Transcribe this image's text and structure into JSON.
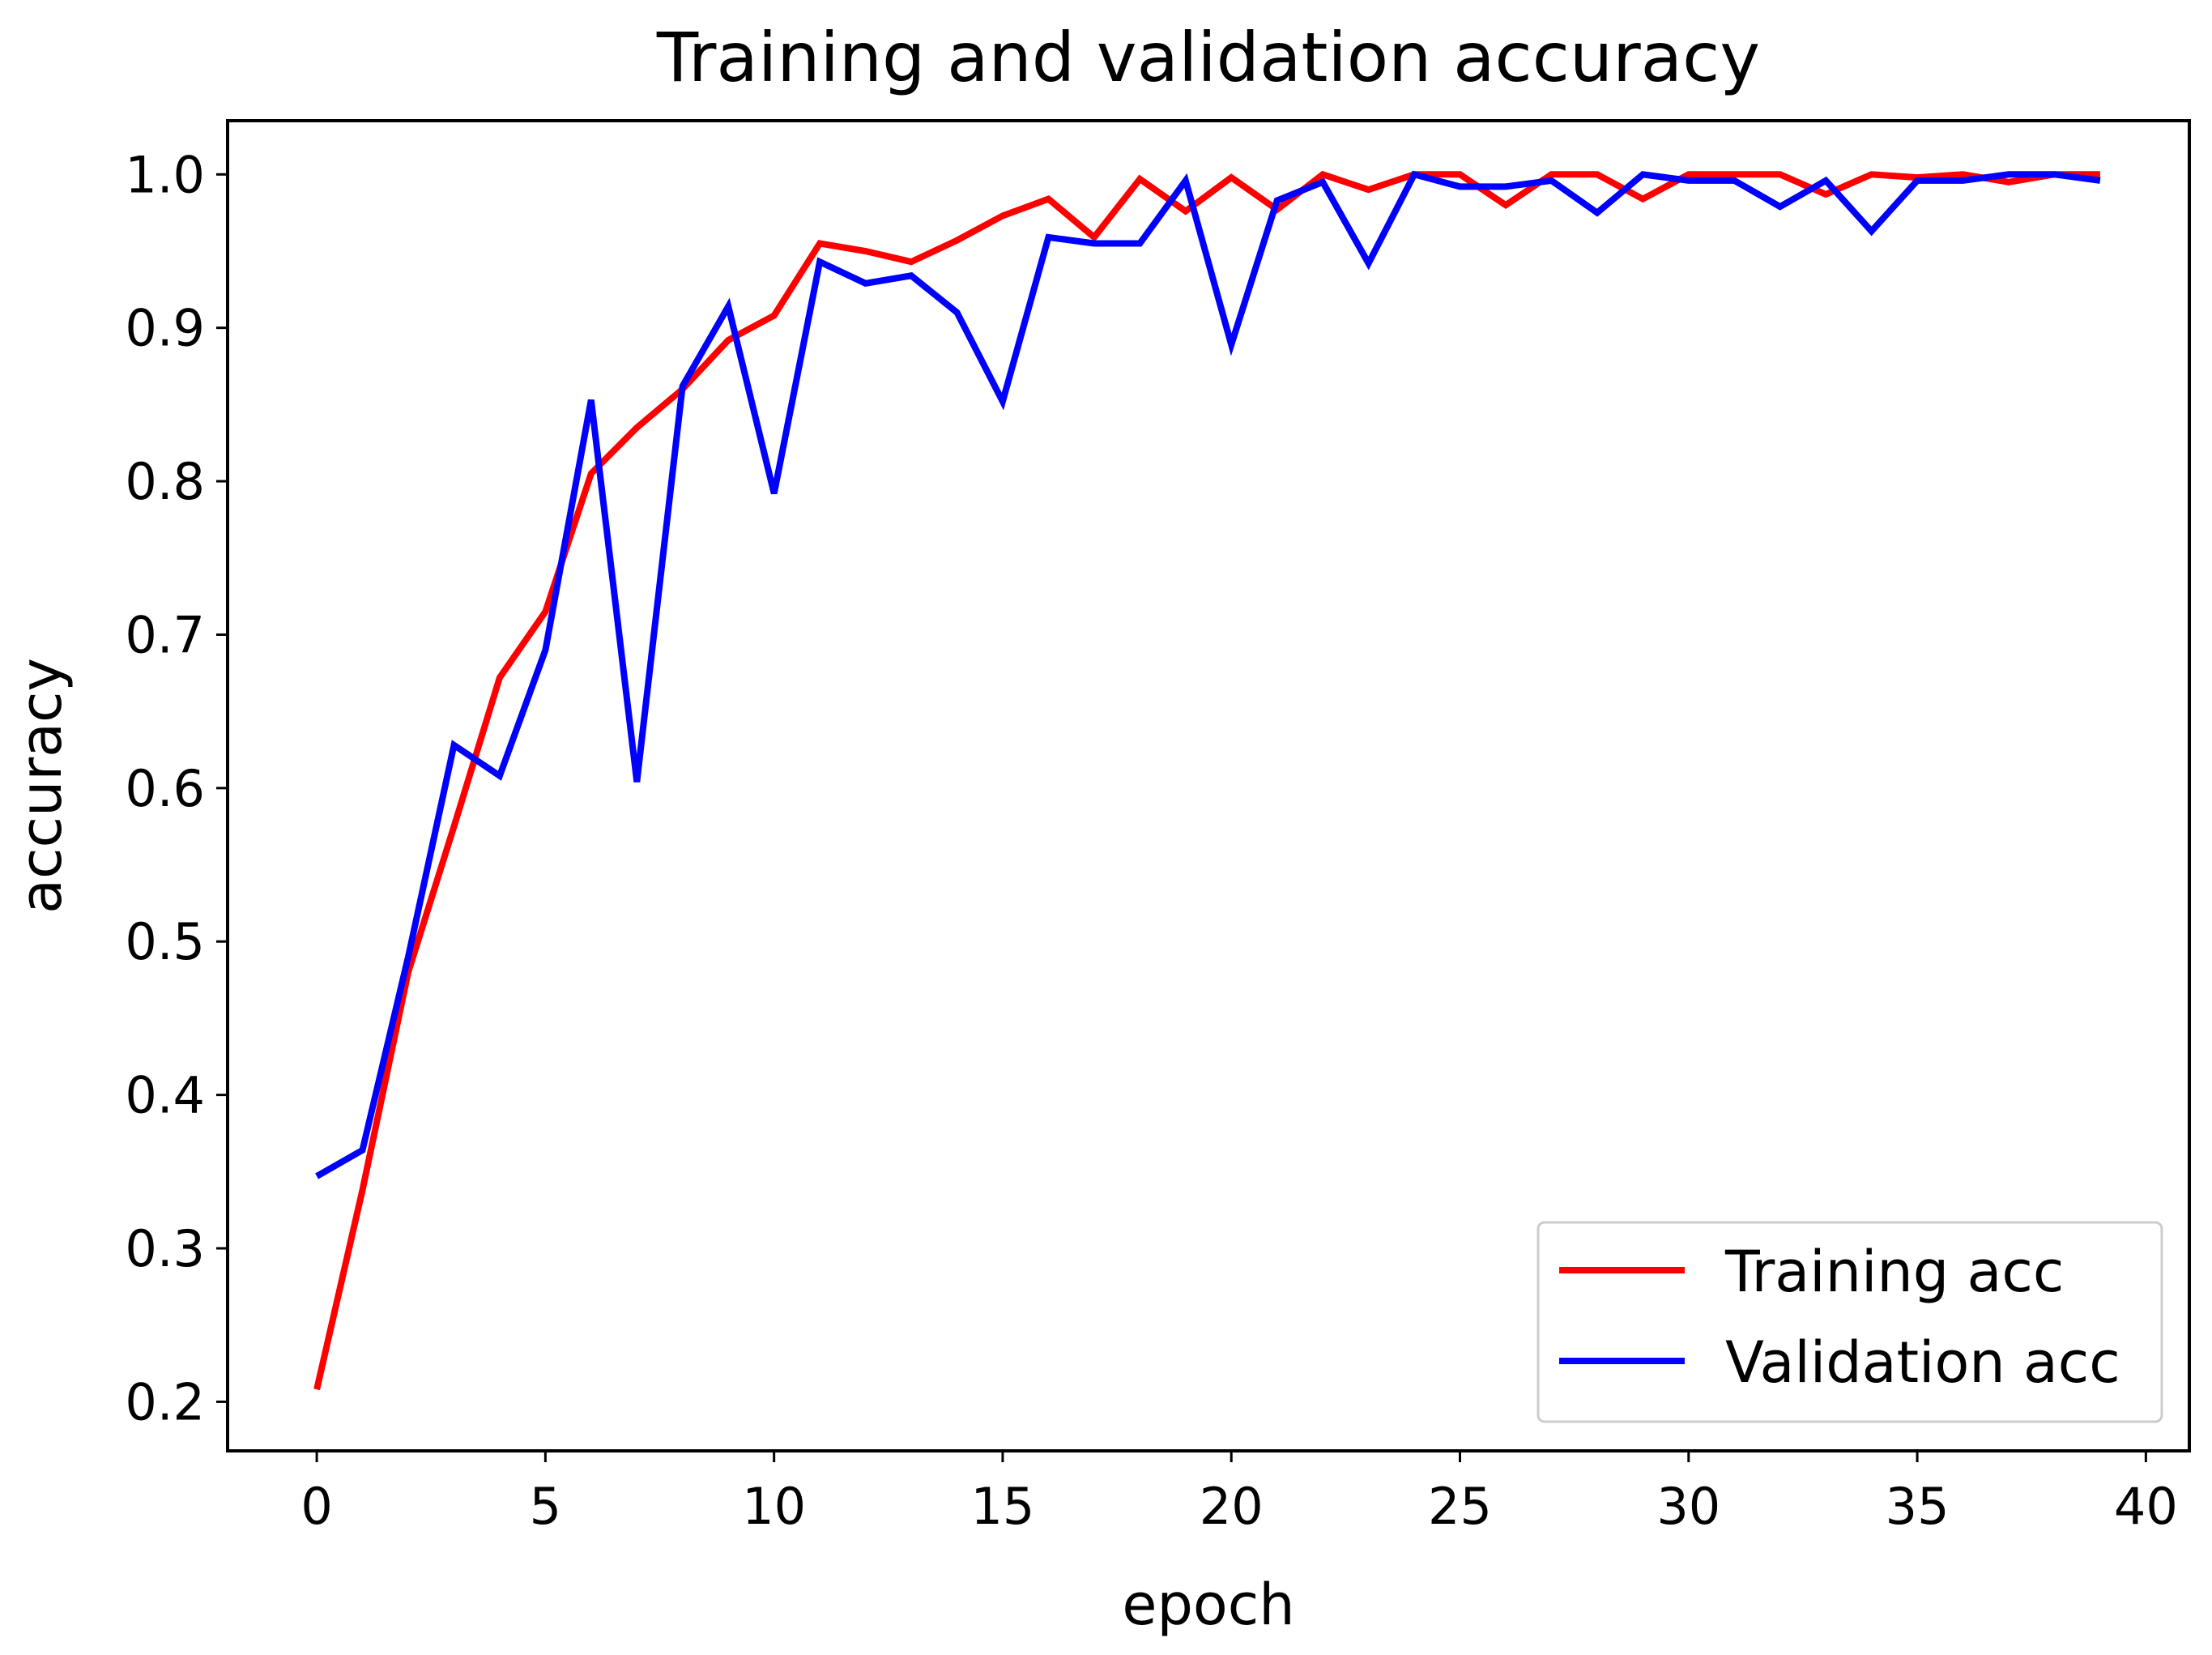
{
  "chart_data": {
    "type": "line",
    "title": "Training and validation accuracy",
    "xlabel": "epoch",
    "ylabel": "accuracy",
    "xlim": [
      -1.95,
      40.95
    ],
    "ylim": [
      0.168,
      1.035
    ],
    "xticks": [
      0,
      5,
      10,
      15,
      20,
      25,
      30,
      35,
      40
    ],
    "xtick_labels": [
      "0",
      "5",
      "10",
      "15",
      "20",
      "25",
      "30",
      "35",
      "40"
    ],
    "yticks": [
      0.2,
      0.3,
      0.4,
      0.5,
      0.6,
      0.7,
      0.8,
      0.9,
      1.0
    ],
    "ytick_labels": [
      "0.2",
      "0.3",
      "0.4",
      "0.5",
      "0.6",
      "0.7",
      "0.8",
      "0.9",
      "1.0"
    ],
    "grid": false,
    "legend_position": "bottom-right",
    "x": [
      0,
      1,
      2,
      3,
      4,
      5,
      6,
      7,
      8,
      9,
      10,
      11,
      12,
      13,
      14,
      15,
      16,
      17,
      18,
      19,
      20,
      21,
      22,
      23,
      24,
      25,
      26,
      27,
      28,
      29,
      30,
      31,
      32,
      33,
      34,
      35,
      36,
      37,
      38,
      39
    ],
    "series": [
      {
        "name": "Training acc",
        "color": "#ff0000",
        "values": [
          0.208,
          0.338,
          0.48,
          0.575,
          0.672,
          0.715,
          0.805,
          0.835,
          0.86,
          0.892,
          0.908,
          0.955,
          0.95,
          0.943,
          0.957,
          0.973,
          0.984,
          0.959,
          0.997,
          0.976,
          0.998,
          0.977,
          1.0,
          0.99,
          1.0,
          1.0,
          0.98,
          1.0,
          1.0,
          0.984,
          1.0,
          1.0,
          1.0,
          0.987,
          1.0,
          0.998,
          1.0,
          0.995,
          1.0,
          1.0
        ]
      },
      {
        "name": "Validation acc",
        "color": "#0000ff",
        "values": [
          0.347,
          0.364,
          0.49,
          0.628,
          0.608,
          0.69,
          0.853,
          0.604,
          0.862,
          0.914,
          0.792,
          0.943,
          0.929,
          0.934,
          0.91,
          0.852,
          0.959,
          0.955,
          0.955,
          0.996,
          0.889,
          0.983,
          0.995,
          0.942,
          1.0,
          0.992,
          0.992,
          0.996,
          0.975,
          1.0,
          0.996,
          0.996,
          0.979,
          0.996,
          0.963,
          0.996,
          0.996,
          1.0,
          1.0,
          0.996
        ]
      }
    ]
  }
}
